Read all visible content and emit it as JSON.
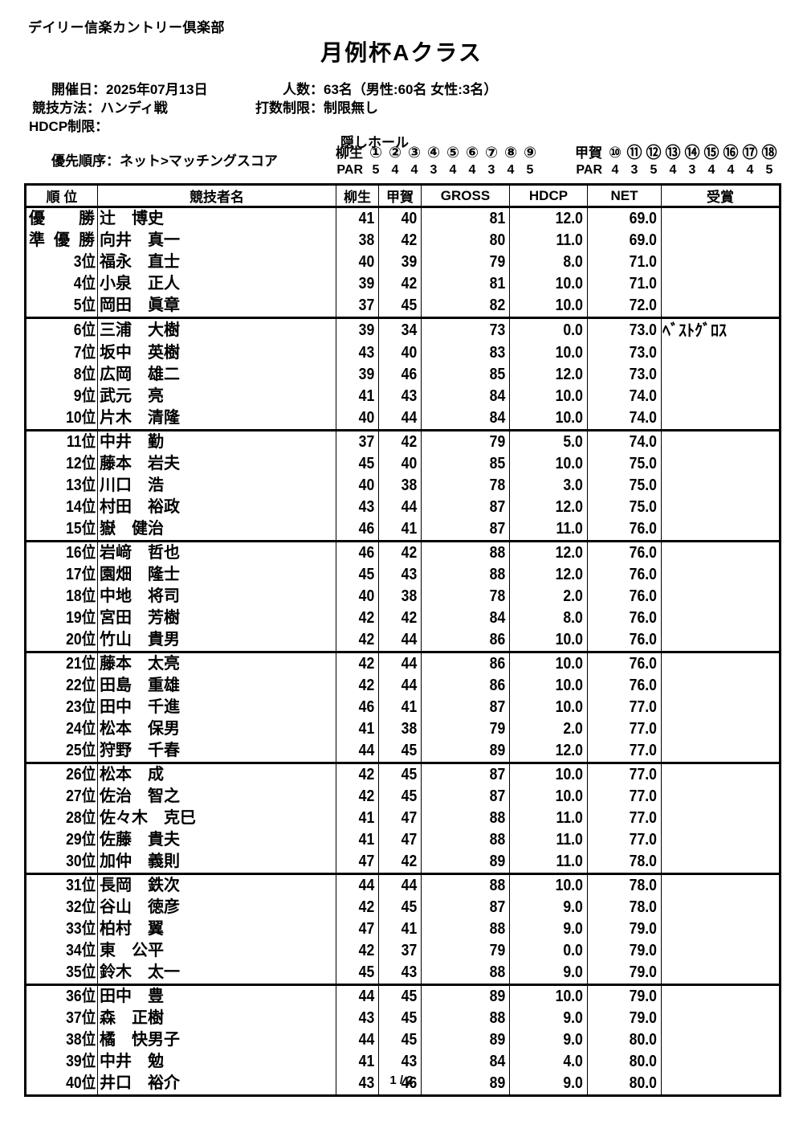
{
  "page": {
    "club_name": "デイリー信楽カントリー倶楽部",
    "title": "月例杯Aクラス",
    "page_number": "1 / 2"
  },
  "info": {
    "date_label": "開催日：",
    "date_value": "2025年07月13日",
    "players_label": "人数：",
    "players_value": "63名（男性:60名 女性:3名）",
    "method_label": "競技方法：",
    "method_value": "ハンディ戦",
    "strokes_label": "打数制限：",
    "strokes_value": "制限無し",
    "hdcp_label": "HDCP制限：",
    "hdcp_value": "",
    "priority_label": "優先順序：",
    "priority_value": "ネット>マッチングスコア"
  },
  "hidden_holes": {
    "title": "隠しホール",
    "courses": [
      {
        "name": "柳生",
        "par_label": "PAR",
        "holes": [
          "①",
          "②",
          "③",
          "④",
          "⑤",
          "⑥",
          "⑦",
          "⑧",
          "⑨"
        ],
        "pars": [
          "5",
          "4",
          "4",
          "3",
          "4",
          "4",
          "3",
          "4",
          "5"
        ]
      },
      {
        "name": "甲賀",
        "par_label": "PAR",
        "holes": [
          "⑩",
          "⑪",
          "⑫",
          "⑬",
          "⑭",
          "⑮",
          "⑯",
          "⑰",
          "⑱"
        ],
        "pars": [
          "4",
          "3",
          "5",
          "4",
          "3",
          "4",
          "4",
          "4",
          "5"
        ]
      }
    ]
  },
  "results": {
    "headers": {
      "rank": "順 位",
      "name": "競技者名",
      "yagyu": "柳生",
      "koga": "甲賀",
      "gross": "GROSS",
      "hdcp": "HDCP",
      "net": "NET",
      "award": "受賞"
    },
    "rows": [
      {
        "rank": "優　勝",
        "name": "辻　博史",
        "yagyu": "41",
        "koga": "40",
        "gross": "81",
        "hdcp": "12.0",
        "net": "69.0",
        "award": ""
      },
      {
        "rank": "準優勝",
        "name": "向井　真一",
        "yagyu": "38",
        "koga": "42",
        "gross": "80",
        "hdcp": "11.0",
        "net": "69.0",
        "award": ""
      },
      {
        "rank": "3位",
        "name": "福永　直士",
        "yagyu": "40",
        "koga": "39",
        "gross": "79",
        "hdcp": "8.0",
        "net": "71.0",
        "award": ""
      },
      {
        "rank": "4位",
        "name": "小泉　正人",
        "yagyu": "39",
        "koga": "42",
        "gross": "81",
        "hdcp": "10.0",
        "net": "71.0",
        "award": ""
      },
      {
        "rank": "5位",
        "name": "岡田　眞章",
        "yagyu": "37",
        "koga": "45",
        "gross": "82",
        "hdcp": "10.0",
        "net": "72.0",
        "award": ""
      },
      {
        "rank": "6位",
        "name": "三浦　大樹",
        "yagyu": "39",
        "koga": "34",
        "gross": "73",
        "hdcp": "0.0",
        "net": "73.0",
        "award": "ﾍﾞｽﾄｸﾞﾛｽ"
      },
      {
        "rank": "7位",
        "name": "坂中　英樹",
        "yagyu": "43",
        "koga": "40",
        "gross": "83",
        "hdcp": "10.0",
        "net": "73.0",
        "award": ""
      },
      {
        "rank": "8位",
        "name": "広岡　雄二",
        "yagyu": "39",
        "koga": "46",
        "gross": "85",
        "hdcp": "12.0",
        "net": "73.0",
        "award": ""
      },
      {
        "rank": "9位",
        "name": "武元　亮",
        "yagyu": "41",
        "koga": "43",
        "gross": "84",
        "hdcp": "10.0",
        "net": "74.0",
        "award": ""
      },
      {
        "rank": "10位",
        "name": "片木　清隆",
        "yagyu": "40",
        "koga": "44",
        "gross": "84",
        "hdcp": "10.0",
        "net": "74.0",
        "award": ""
      },
      {
        "rank": "11位",
        "name": "中井　勤",
        "yagyu": "37",
        "koga": "42",
        "gross": "79",
        "hdcp": "5.0",
        "net": "74.0",
        "award": ""
      },
      {
        "rank": "12位",
        "name": "藤本　岩夫",
        "yagyu": "45",
        "koga": "40",
        "gross": "85",
        "hdcp": "10.0",
        "net": "75.0",
        "award": ""
      },
      {
        "rank": "13位",
        "name": "川口　浩",
        "yagyu": "40",
        "koga": "38",
        "gross": "78",
        "hdcp": "3.0",
        "net": "75.0",
        "award": ""
      },
      {
        "rank": "14位",
        "name": "村田　裕政",
        "yagyu": "43",
        "koga": "44",
        "gross": "87",
        "hdcp": "12.0",
        "net": "75.0",
        "award": ""
      },
      {
        "rank": "15位",
        "name": "嶽　健治",
        "yagyu": "46",
        "koga": "41",
        "gross": "87",
        "hdcp": "11.0",
        "net": "76.0",
        "award": ""
      },
      {
        "rank": "16位",
        "name": "岩﨑　哲也",
        "yagyu": "46",
        "koga": "42",
        "gross": "88",
        "hdcp": "12.0",
        "net": "76.0",
        "award": ""
      },
      {
        "rank": "17位",
        "name": "園畑　隆士",
        "yagyu": "45",
        "koga": "43",
        "gross": "88",
        "hdcp": "12.0",
        "net": "76.0",
        "award": ""
      },
      {
        "rank": "18位",
        "name": "中地　将司",
        "yagyu": "40",
        "koga": "38",
        "gross": "78",
        "hdcp": "2.0",
        "net": "76.0",
        "award": ""
      },
      {
        "rank": "19位",
        "name": "宮田　芳樹",
        "yagyu": "42",
        "koga": "42",
        "gross": "84",
        "hdcp": "8.0",
        "net": "76.0",
        "award": ""
      },
      {
        "rank": "20位",
        "name": "竹山　貴男",
        "yagyu": "42",
        "koga": "44",
        "gross": "86",
        "hdcp": "10.0",
        "net": "76.0",
        "award": ""
      },
      {
        "rank": "21位",
        "name": "藤本　太亮",
        "yagyu": "42",
        "koga": "44",
        "gross": "86",
        "hdcp": "10.0",
        "net": "76.0",
        "award": ""
      },
      {
        "rank": "22位",
        "name": "田島　重雄",
        "yagyu": "42",
        "koga": "44",
        "gross": "86",
        "hdcp": "10.0",
        "net": "76.0",
        "award": ""
      },
      {
        "rank": "23位",
        "name": "田中　千進",
        "yagyu": "46",
        "koga": "41",
        "gross": "87",
        "hdcp": "10.0",
        "net": "77.0",
        "award": ""
      },
      {
        "rank": "24位",
        "name": "松本　保男",
        "yagyu": "41",
        "koga": "38",
        "gross": "79",
        "hdcp": "2.0",
        "net": "77.0",
        "award": ""
      },
      {
        "rank": "25位",
        "name": "狩野　千春",
        "yagyu": "44",
        "koga": "45",
        "gross": "89",
        "hdcp": "12.0",
        "net": "77.0",
        "award": ""
      },
      {
        "rank": "26位",
        "name": "松本　成",
        "yagyu": "42",
        "koga": "45",
        "gross": "87",
        "hdcp": "10.0",
        "net": "77.0",
        "award": ""
      },
      {
        "rank": "27位",
        "name": "佐治　智之",
        "yagyu": "42",
        "koga": "45",
        "gross": "87",
        "hdcp": "10.0",
        "net": "77.0",
        "award": ""
      },
      {
        "rank": "28位",
        "name": "佐々木　克巳",
        "yagyu": "41",
        "koga": "47",
        "gross": "88",
        "hdcp": "11.0",
        "net": "77.0",
        "award": ""
      },
      {
        "rank": "29位",
        "name": "佐藤　貴夫",
        "yagyu": "41",
        "koga": "47",
        "gross": "88",
        "hdcp": "11.0",
        "net": "77.0",
        "award": ""
      },
      {
        "rank": "30位",
        "name": "加仲　義則",
        "yagyu": "47",
        "koga": "42",
        "gross": "89",
        "hdcp": "11.0",
        "net": "78.0",
        "award": ""
      },
      {
        "rank": "31位",
        "name": "長岡　鉄次",
        "yagyu": "44",
        "koga": "44",
        "gross": "88",
        "hdcp": "10.0",
        "net": "78.0",
        "award": ""
      },
      {
        "rank": "32位",
        "name": "谷山　徳彦",
        "yagyu": "42",
        "koga": "45",
        "gross": "87",
        "hdcp": "9.0",
        "net": "78.0",
        "award": ""
      },
      {
        "rank": "33位",
        "name": "柏村　翼",
        "yagyu": "47",
        "koga": "41",
        "gross": "88",
        "hdcp": "9.0",
        "net": "79.0",
        "award": ""
      },
      {
        "rank": "34位",
        "name": "東　公平",
        "yagyu": "42",
        "koga": "37",
        "gross": "79",
        "hdcp": "0.0",
        "net": "79.0",
        "award": ""
      },
      {
        "rank": "35位",
        "name": "鈴木　太一",
        "yagyu": "45",
        "koga": "43",
        "gross": "88",
        "hdcp": "9.0",
        "net": "79.0",
        "award": ""
      },
      {
        "rank": "36位",
        "name": "田中　豊",
        "yagyu": "44",
        "koga": "45",
        "gross": "89",
        "hdcp": "10.0",
        "net": "79.0",
        "award": ""
      },
      {
        "rank": "37位",
        "name": "森　正樹",
        "yagyu": "43",
        "koga": "45",
        "gross": "88",
        "hdcp": "9.0",
        "net": "79.0",
        "award": ""
      },
      {
        "rank": "38位",
        "name": "橘　快男子",
        "yagyu": "44",
        "koga": "45",
        "gross": "89",
        "hdcp": "9.0",
        "net": "80.0",
        "award": ""
      },
      {
        "rank": "39位",
        "name": "中井　勉",
        "yagyu": "41",
        "koga": "43",
        "gross": "84",
        "hdcp": "4.0",
        "net": "80.0",
        "award": ""
      },
      {
        "rank": "40位",
        "name": "井口　裕介",
        "yagyu": "43",
        "koga": "46",
        "gross": "89",
        "hdcp": "9.0",
        "net": "80.0",
        "award": ""
      }
    ]
  }
}
